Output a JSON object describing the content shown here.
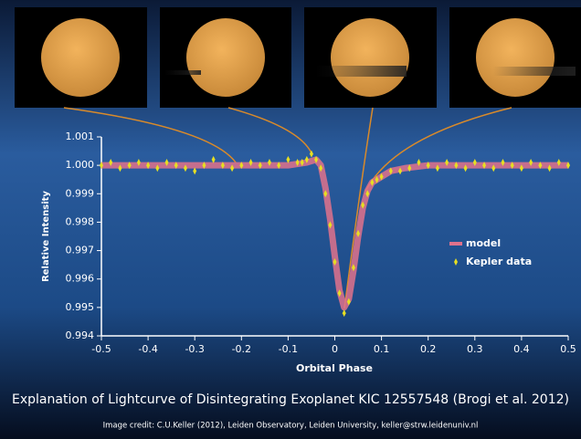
{
  "chart_data": {
    "type": "line",
    "x_label": "Orbital Phase",
    "y_label": "Relative Intensity",
    "xlim": [
      -0.5,
      0.5
    ],
    "xticks": [
      -0.5,
      -0.4,
      -0.3,
      -0.2,
      -0.1,
      0,
      0.1,
      0.2,
      0.3,
      0.4,
      0.5
    ],
    "ylim": [
      0.994,
      1.001
    ],
    "yticks": [
      1.001,
      {
        "value": 1,
        "label": "1.000"
      },
      0.999,
      0.998,
      0.997,
      0.996,
      0.995,
      0.994
    ],
    "legend": "right",
    "series": [
      {
        "name": "model",
        "style": "line",
        "color": "#e0728c",
        "x": [
          -0.5,
          -0.1,
          -0.06,
          -0.04,
          -0.03,
          -0.02,
          -0.01,
          0,
          0.01,
          0.02,
          0.03,
          0.04,
          0.05,
          0.06,
          0.07,
          0.08,
          0.1,
          0.12,
          0.15,
          0.2,
          0.5
        ],
        "values": [
          1.0,
          1.0,
          1.0001,
          1.0002,
          1.0,
          0.9992,
          0.9981,
          0.9968,
          0.9956,
          0.995,
          0.9953,
          0.9963,
          0.9975,
          0.9985,
          0.9991,
          0.9994,
          0.9996,
          0.9998,
          0.9999,
          1.0,
          1.0
        ]
      },
      {
        "name": "Kepler data",
        "style": "points",
        "color": "#e6df22",
        "x": [
          -0.5,
          -0.48,
          -0.46,
          -0.44,
          -0.42,
          -0.4,
          -0.38,
          -0.36,
          -0.34,
          -0.32,
          -0.3,
          -0.28,
          -0.26,
          -0.24,
          -0.22,
          -0.2,
          -0.18,
          -0.16,
          -0.14,
          -0.12,
          -0.1,
          -0.08,
          -0.07,
          -0.06,
          -0.05,
          -0.04,
          -0.03,
          -0.02,
          -0.01,
          0,
          0.01,
          0.02,
          0.03,
          0.04,
          0.05,
          0.06,
          0.07,
          0.08,
          0.09,
          0.1,
          0.12,
          0.14,
          0.16,
          0.18,
          0.2,
          0.22,
          0.24,
          0.26,
          0.28,
          0.3,
          0.32,
          0.34,
          0.36,
          0.38,
          0.4,
          0.42,
          0.44,
          0.46,
          0.48,
          0.5
        ],
        "values": [
          1.0,
          1.0001,
          0.9999,
          1.0,
          1.0001,
          1.0,
          0.9999,
          1.0001,
          1.0,
          0.9999,
          0.9998,
          1.0,
          1.0002,
          1.0,
          0.9999,
          1.0,
          1.0001,
          1.0,
          1.0001,
          1.0,
          1.0002,
          1.0001,
          1.0001,
          1.0002,
          1.0004,
          1.0002,
          0.9999,
          0.999,
          0.9979,
          0.9966,
          0.9955,
          0.9948,
          0.9952,
          0.9964,
          0.9976,
          0.9986,
          0.999,
          0.9994,
          0.9995,
          0.9996,
          0.9998,
          0.9998,
          0.9999,
          1.0001,
          1.0,
          0.9999,
          1.0001,
          1.0,
          0.9999,
          1.0001,
          1.0,
          0.9999,
          1.0001,
          1.0,
          0.9999,
          1.0001,
          1.0,
          0.9999,
          1.0001,
          1.0
        ]
      }
    ]
  },
  "caption": "Explanation of Lightcurve of Disintegrating Exoplanet KIC 12557548 (Brogi et al. 2012)",
  "credit": "Image credit: C.U.Keller (2012), Leiden Observatory, Leiden University, keller@strw.leidenuniv.nl"
}
